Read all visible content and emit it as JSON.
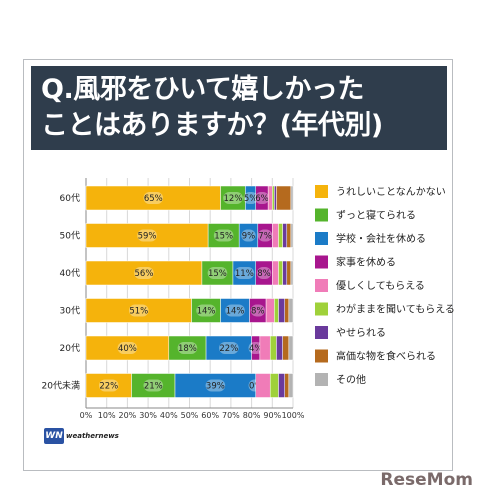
{
  "header": {
    "line1": "Q.風邪をひいて嬉しかった",
    "line2": "ことはありますか？(年代別)"
  },
  "logo": {
    "mark": "WN",
    "text": "weathernews"
  },
  "watermark": "ReseMom",
  "chart_data": {
    "type": "bar",
    "orientation": "horizontal",
    "stacked": true,
    "categories": [
      "60代",
      "50代",
      "40代",
      "30代",
      "20代",
      "20代未満"
    ],
    "x_ticks": [
      "0%",
      "10%",
      "20%",
      "30%",
      "40%",
      "50%",
      "60%",
      "70%",
      "80%",
      "90%",
      "100%"
    ],
    "xlim": [
      0,
      100
    ],
    "grid": true,
    "legend_position": "right",
    "series": [
      {
        "name": "うれしいことなんかない",
        "color": "#f5b30c",
        "values": [
          65,
          59,
          56,
          51,
          40,
          22
        ],
        "labels": [
          "65%",
          "59%",
          "56%",
          "51%",
          "40%",
          "22%"
        ]
      },
      {
        "name": "ずっと寝てられる",
        "color": "#55b42c",
        "values": [
          12,
          15,
          15,
          14,
          18,
          21
        ],
        "labels": [
          "12%",
          "15%",
          "15%",
          "14%",
          "18%",
          "21%"
        ]
      },
      {
        "name": "学校・会社を休める",
        "color": "#1b7bc7",
        "values": [
          5,
          9,
          11,
          14,
          22,
          39
        ],
        "labels": [
          "5%",
          "9%",
          "11%",
          "14%",
          "22%",
          "39%"
        ]
      },
      {
        "name": "家事を休める",
        "color": "#a8168e",
        "values": [
          6,
          7,
          8,
          8,
          4,
          0
        ],
        "labels": [
          "6%",
          "7%",
          "8%",
          "8%",
          "4%",
          "0%"
        ]
      },
      {
        "name": "優しくしてもらえる",
        "color": "#f07cb8",
        "values": [
          2,
          3,
          3,
          4,
          5,
          7
        ],
        "labels": [
          "",
          "",
          "",
          "",
          "",
          ""
        ]
      },
      {
        "name": "わがままを聞いてもらえる",
        "color": "#9fd13a",
        "values": [
          1,
          2,
          2,
          2,
          3,
          4
        ],
        "labels": [
          "",
          "",
          "",
          "",
          "",
          ""
        ]
      },
      {
        "name": "やせられる",
        "color": "#6a3a9c",
        "values": [
          1,
          2,
          2,
          3,
          3,
          3
        ],
        "labels": [
          "",
          "",
          "",
          "",
          "",
          ""
        ]
      },
      {
        "name": "高価な物を食べられる",
        "color": "#b56a1e",
        "values": [
          7,
          2,
          2,
          2,
          3,
          2
        ],
        "labels": [
          "",
          "",
          "",
          "",
          "",
          ""
        ]
      },
      {
        "name": "その他",
        "color": "#b3b3b3",
        "values": [
          1,
          1,
          1,
          2,
          2,
          2
        ],
        "labels": [
          "",
          "",
          "",
          "",
          "",
          ""
        ]
      }
    ]
  }
}
